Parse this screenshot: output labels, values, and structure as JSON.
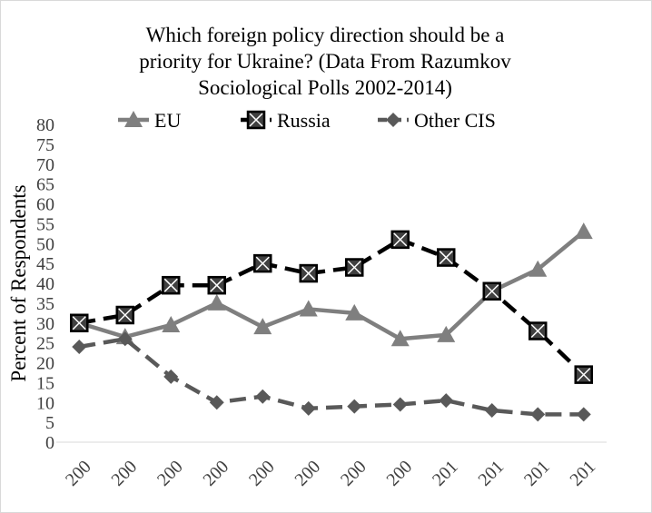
{
  "chart_data": {
    "type": "line",
    "title_lines": [
      "Which foreign policy direction should be a",
      "priority for Ukraine? (Data From Razumkov",
      "Sociological Polls 2002-2014)"
    ],
    "ylabel": "Percent of Respondents",
    "xlabel": "",
    "ylim": [
      0,
      80
    ],
    "y_ticks": [
      "0",
      "5",
      "10",
      "15",
      "20",
      "25",
      "30",
      "35",
      "40",
      "45",
      "50",
      "55",
      "60",
      "65",
      "70",
      "75",
      "80"
    ],
    "categories": [
      "200",
      "200",
      "200",
      "200",
      "200",
      "200",
      "200",
      "200",
      "201",
      "201",
      "201",
      "201"
    ],
    "grid": false,
    "legend_position": "top",
    "series": [
      {
        "name": "EU",
        "color": "#7f7f7f",
        "dash": "solid",
        "marker": "triangle",
        "values": [
          30,
          26.5,
          29.5,
          35,
          29,
          33.5,
          32.5,
          26,
          27,
          38,
          43.5,
          53
        ]
      },
      {
        "name": "Russia",
        "color": "#000000",
        "dash": "dashed",
        "marker": "boxed-x",
        "values": [
          30,
          32,
          39.5,
          39.5,
          45,
          42.5,
          44,
          51,
          46.5,
          38,
          28,
          17
        ]
      },
      {
        "name": "Other CIS",
        "color": "#595959",
        "dash": "dashed",
        "marker": "diamond",
        "values": [
          24,
          26,
          16.5,
          10,
          11.5,
          8.5,
          9,
          9.5,
          10.5,
          8,
          7,
          7
        ]
      }
    ]
  }
}
